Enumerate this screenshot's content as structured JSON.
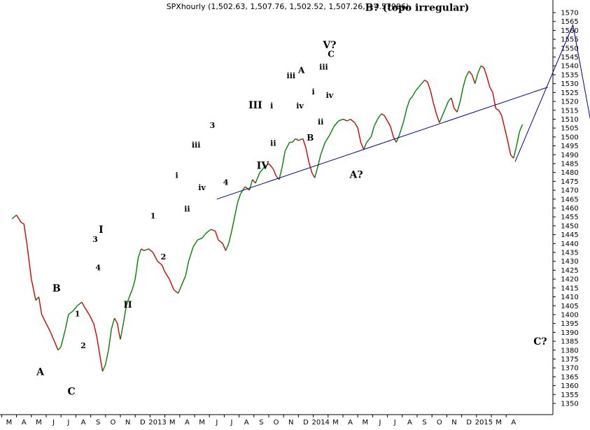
{
  "chart_data": {
    "type": "line",
    "subtype": "ohlc-hourly-elliott-wave",
    "title": "SPXhourly (1,502.63, 1,507.76, 1,502.52, 1,507.26, +4.57996)",
    "ylim": [
      1345,
      1575
    ],
    "yticks": [
      1350,
      1355,
      1360,
      1365,
      1370,
      1375,
      1380,
      1385,
      1390,
      1395,
      1400,
      1405,
      1410,
      1415,
      1420,
      1425,
      1430,
      1435,
      1440,
      1445,
      1450,
      1455,
      1460,
      1465,
      1470,
      1475,
      1480,
      1485,
      1490,
      1495,
      1500,
      1505,
      1510,
      1515,
      1520,
      1525,
      1530,
      1535,
      1540,
      1545,
      1550,
      1555,
      1560,
      1565,
      1570
    ],
    "xticks": [
      "M",
      "A",
      "M",
      "J",
      "J",
      "A",
      "S",
      "O",
      "N",
      "D",
      "2013",
      "M",
      "A",
      "M",
      "J",
      "J",
      "A",
      "S",
      "O",
      "N",
      "D",
      "2014",
      "M",
      "A",
      "M",
      "J",
      "J",
      "A",
      "S",
      "O",
      "N",
      "D",
      "2015",
      "M",
      "A"
    ],
    "up_color": "#008000",
    "down_color": "#cc0000",
    "line_color": "#00008b",
    "series": [
      {
        "values": [
          [
            0.2,
            1454
          ],
          [
            0.5,
            1456
          ],
          [
            0.8,
            1452
          ],
          [
            1.0,
            1451
          ],
          [
            1.2,
            1440
          ],
          [
            1.5,
            1420
          ],
          [
            1.8,
            1408
          ],
          [
            2.0,
            1410
          ],
          [
            2.2,
            1400
          ],
          [
            2.5,
            1395
          ],
          [
            2.8,
            1390
          ],
          [
            3.0,
            1386
          ],
          [
            3.3,
            1380
          ],
          [
            3.5,
            1382
          ],
          [
            3.8,
            1392
          ],
          [
            4.0,
            1400
          ],
          [
            4.3,
            1402
          ],
          [
            4.6,
            1405
          ],
          [
            4.9,
            1407
          ],
          [
            5.1,
            1404
          ],
          [
            5.4,
            1400
          ],
          [
            5.7,
            1395
          ],
          [
            5.9,
            1388
          ],
          [
            6.1,
            1378
          ],
          [
            6.3,
            1368
          ],
          [
            6.5,
            1372
          ],
          [
            6.7,
            1380
          ],
          [
            6.9,
            1392
          ],
          [
            7.1,
            1398
          ],
          [
            7.3,
            1395
          ],
          [
            7.4,
            1390
          ],
          [
            7.5,
            1386
          ],
          [
            7.7,
            1395
          ],
          [
            7.9,
            1405
          ],
          [
            8.1,
            1410
          ],
          [
            8.3,
            1414
          ],
          [
            8.5,
            1420
          ],
          [
            8.7,
            1432
          ],
          [
            8.9,
            1437
          ],
          [
            9.1,
            1436
          ],
          [
            9.4,
            1437
          ],
          [
            9.7,
            1435
          ],
          [
            10.0,
            1430
          ],
          [
            10.3,
            1428
          ],
          [
            10.5,
            1424
          ],
          [
            10.8,
            1420
          ],
          [
            11.1,
            1414
          ],
          [
            11.4,
            1412
          ],
          [
            11.6,
            1416
          ],
          [
            11.9,
            1422
          ],
          [
            12.1,
            1430
          ],
          [
            12.4,
            1438
          ],
          [
            12.7,
            1442
          ],
          [
            13.0,
            1443
          ],
          [
            13.3,
            1446
          ],
          [
            13.6,
            1448
          ],
          [
            13.9,
            1447
          ],
          [
            14.1,
            1442
          ],
          [
            14.4,
            1440
          ],
          [
            14.6,
            1436
          ],
          [
            14.8,
            1440
          ],
          [
            15.0,
            1447
          ],
          [
            15.2,
            1455
          ],
          [
            15.4,
            1463
          ],
          [
            15.6,
            1468
          ],
          [
            15.9,
            1472
          ],
          [
            16.2,
            1470
          ],
          [
            16.4,
            1476
          ],
          [
            16.6,
            1474
          ],
          [
            16.9,
            1480
          ],
          [
            17.2,
            1483
          ],
          [
            17.5,
            1485
          ],
          [
            17.8,
            1482
          ],
          [
            18.0,
            1478
          ],
          [
            18.2,
            1476
          ],
          [
            18.4,
            1483
          ],
          [
            18.6,
            1492
          ],
          [
            18.9,
            1497
          ],
          [
            19.1,
            1497
          ],
          [
            19.3,
            1499
          ],
          [
            19.5,
            1498
          ],
          [
            19.8,
            1499
          ],
          [
            20.0,
            1494
          ],
          [
            20.2,
            1486
          ],
          [
            20.4,
            1480
          ],
          [
            20.6,
            1477
          ],
          [
            20.8,
            1483
          ],
          [
            21.0,
            1490
          ],
          [
            21.3,
            1497
          ],
          [
            21.6,
            1501
          ],
          [
            21.9,
            1506
          ],
          [
            22.2,
            1509
          ],
          [
            22.5,
            1510
          ],
          [
            22.8,
            1509
          ],
          [
            23.0,
            1510
          ],
          [
            23.3,
            1508
          ],
          [
            23.5,
            1505
          ],
          [
            23.7,
            1497
          ],
          [
            23.9,
            1493
          ],
          [
            24.1,
            1497
          ],
          [
            24.4,
            1500
          ],
          [
            24.6,
            1506
          ],
          [
            24.9,
            1511
          ],
          [
            25.1,
            1513
          ],
          [
            25.3,
            1512
          ],
          [
            25.5,
            1509
          ],
          [
            25.7,
            1506
          ],
          [
            25.9,
            1500
          ],
          [
            26.1,
            1497
          ],
          [
            26.3,
            1501
          ],
          [
            26.6,
            1509
          ],
          [
            26.8,
            1516
          ],
          [
            27.0,
            1521
          ],
          [
            27.2,
            1523
          ],
          [
            27.4,
            1526
          ],
          [
            27.6,
            1528
          ],
          [
            27.8,
            1530
          ],
          [
            28.0,
            1532
          ],
          [
            28.2,
            1531
          ],
          [
            28.4,
            1526
          ],
          [
            28.6,
            1519
          ],
          [
            28.8,
            1513
          ],
          [
            29.0,
            1508
          ],
          [
            29.2,
            1512
          ],
          [
            29.4,
            1516
          ],
          [
            29.6,
            1520
          ],
          [
            29.8,
            1522
          ],
          [
            30.0,
            1516
          ],
          [
            30.2,
            1514
          ],
          [
            30.4,
            1520
          ],
          [
            30.6,
            1528
          ],
          [
            30.8,
            1534
          ],
          [
            31.0,
            1537
          ],
          [
            31.2,
            1535
          ],
          [
            31.4,
            1530
          ],
          [
            31.6,
            1536
          ],
          [
            31.8,
            1540
          ],
          [
            32.0,
            1539
          ],
          [
            32.2,
            1534
          ],
          [
            32.4,
            1528
          ],
          [
            32.6,
            1525
          ],
          [
            32.8,
            1516
          ],
          [
            33.0,
            1515
          ],
          [
            33.2,
            1512
          ],
          [
            33.4,
            1505
          ],
          [
            33.6,
            1498
          ],
          [
            33.8,
            1490
          ],
          [
            34.0,
            1488
          ],
          [
            34.2,
            1495
          ],
          [
            34.4,
            1503
          ],
          [
            34.6,
            1507
          ]
        ]
      }
    ],
    "trendline": [
      [
        14.0,
        1465
      ],
      [
        36.3,
        1528
      ]
    ],
    "projection": [
      [
        34.1,
        1486
      ],
      [
        38.0,
        1563
      ],
      [
        41.8,
        1391
      ]
    ],
    "annotations": [
      {
        "label": "A",
        "x": 2.1,
        "y": 1366,
        "size": 14
      },
      {
        "label": "B",
        "x": 3.2,
        "y": 1413,
        "size": 14
      },
      {
        "label": "C",
        "x": 4.2,
        "y": 1355,
        "size": 14
      },
      {
        "label": "1",
        "x": 4.6,
        "y": 1399,
        "size": 11
      },
      {
        "label": "2",
        "x": 5.0,
        "y": 1381,
        "size": 11
      },
      {
        "label": "3",
        "x": 5.8,
        "y": 1441,
        "size": 11
      },
      {
        "label": "I",
        "x": 6.2,
        "y": 1446,
        "size": 14
      },
      {
        "label": "4",
        "x": 6.0,
        "y": 1425,
        "size": 11
      },
      {
        "label": "II",
        "x": 8.0,
        "y": 1404,
        "size": 13
      },
      {
        "label": "1",
        "x": 9.7,
        "y": 1454,
        "size": 11
      },
      {
        "label": "2",
        "x": 10.4,
        "y": 1431,
        "size": 11
      },
      {
        "label": "i",
        "x": 11.3,
        "y": 1477,
        "size": 11
      },
      {
        "label": "ii",
        "x": 12.0,
        "y": 1458,
        "size": 11
      },
      {
        "label": "iv",
        "x": 13.0,
        "y": 1470,
        "size": 11
      },
      {
        "label": "iii",
        "x": 12.6,
        "y": 1494,
        "size": 11
      },
      {
        "label": "3",
        "x": 13.7,
        "y": 1505,
        "size": 11
      },
      {
        "label": "4",
        "x": 14.6,
        "y": 1473,
        "size": 11
      },
      {
        "label": "III",
        "x": 16.6,
        "y": 1516,
        "size": 14
      },
      {
        "label": "i",
        "x": 17.7,
        "y": 1516,
        "size": 11
      },
      {
        "label": "ii",
        "x": 17.8,
        "y": 1495,
        "size": 11
      },
      {
        "label": "IV",
        "x": 17.1,
        "y": 1482,
        "size": 14
      },
      {
        "label": "iii",
        "x": 19.0,
        "y": 1533,
        "size": 11
      },
      {
        "label": "A",
        "x": 19.7,
        "y": 1536,
        "size": 12
      },
      {
        "label": "i",
        "x": 20.5,
        "y": 1524,
        "size": 11
      },
      {
        "label": "iv",
        "x": 19.6,
        "y": 1516,
        "size": 11
      },
      {
        "label": "iv",
        "x": 21.6,
        "y": 1522,
        "size": 11
      },
      {
        "label": "ii",
        "x": 21.0,
        "y": 1507,
        "size": 11
      },
      {
        "label": "B",
        "x": 20.3,
        "y": 1498,
        "size": 12
      },
      {
        "label": "iii",
        "x": 21.2,
        "y": 1538,
        "size": 11
      },
      {
        "label": "C",
        "x": 21.7,
        "y": 1545,
        "size": 12
      },
      {
        "label": "V?",
        "x": 21.6,
        "y": 1550,
        "size": 14
      },
      {
        "label": "A?",
        "x": 23.4,
        "y": 1477,
        "size": 14
      },
      {
        "label": "B? (topo irregular)",
        "x": 27.5,
        "y": 1571,
        "size": 14
      },
      {
        "label": "C?",
        "x": 35.8,
        "y": 1383,
        "size": 14
      }
    ]
  }
}
